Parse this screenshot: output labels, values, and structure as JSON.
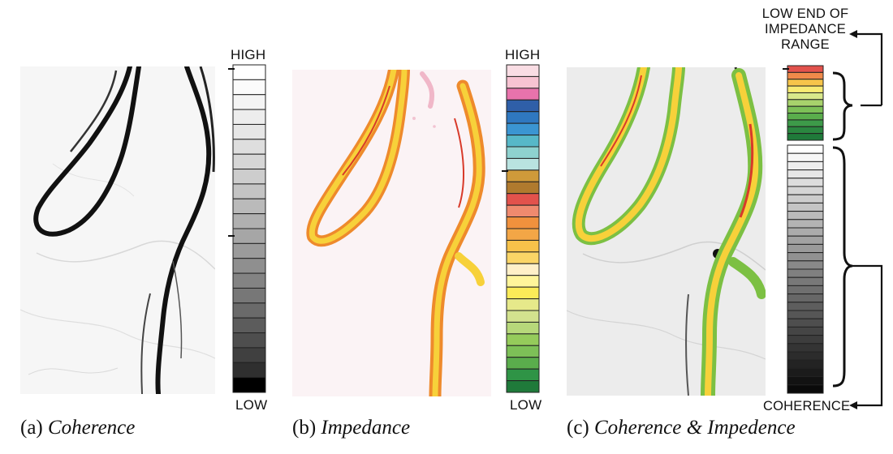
{
  "panels": [
    {
      "id": "a",
      "caption_prefix": "(a)",
      "caption_title": "Coherence",
      "scale_top": "HIGH",
      "scale_bottom": "LOW",
      "image_bg": "#f6f6f6",
      "swatches": [
        "#ffffff",
        "#fbfbfb",
        "#f4f4f4",
        "#ededed",
        "#e6e6e6",
        "#dedede",
        "#d6d6d6",
        "#cdcdcd",
        "#c4c4c4",
        "#bababa",
        "#b0b0b0",
        "#a6a6a6",
        "#9b9b9b",
        "#8f8f8f",
        "#838383",
        "#777777",
        "#6a6a6a",
        "#5c5c5c",
        "#4e4e4e",
        "#404040",
        "#2f2f2f",
        "#000000"
      ]
    },
    {
      "id": "b",
      "caption_prefix": "(b)",
      "caption_title": "Impedance",
      "scale_top": "HIGH",
      "scale_bottom": "LOW",
      "image_bg": "#fbf3f5",
      "swatches": [
        "#f9dde4",
        "#f7c3d2",
        "#e873ac",
        "#2f5fa8",
        "#2f78c0",
        "#3b95d2",
        "#57b8c8",
        "#8ed2cf",
        "#b9e3e0",
        "#cf9a3a",
        "#b07a2e",
        "#e2524c",
        "#ef8a6e",
        "#f0913d",
        "#f3a646",
        "#f7c24a",
        "#fbd566",
        "#fff0c8",
        "#fff59a",
        "#fbeb58",
        "#e6e98a",
        "#d3e28e",
        "#b7d87a",
        "#95cb5b",
        "#7dc057",
        "#5aad4c",
        "#2f9446",
        "#1f7a3a"
      ]
    },
    {
      "id": "c",
      "caption_prefix": "(c)",
      "caption_title": "Coherence & Impedence",
      "scale_top_note": "LOW END OF IMPEDANCE RANGE",
      "scale_bottom_note": "COHERENCE",
      "image_bg": "#ececec",
      "color_swatches": [
        "#e2524c",
        "#ef8a4a",
        "#f6c44a",
        "#f7ea73",
        "#d8e78b",
        "#a8d26c",
        "#7dc057",
        "#5aad4c",
        "#3d9a49",
        "#2a8740",
        "#1f7a3a"
      ],
      "gray_count": 30
    }
  ],
  "colors": {
    "coherence_dark": "#111111",
    "impedance_yellow": "#f7d13a",
    "impedance_orange": "#ee8a2c",
    "impedance_red": "#d83a2a",
    "impedance_green": "#7cc043"
  }
}
